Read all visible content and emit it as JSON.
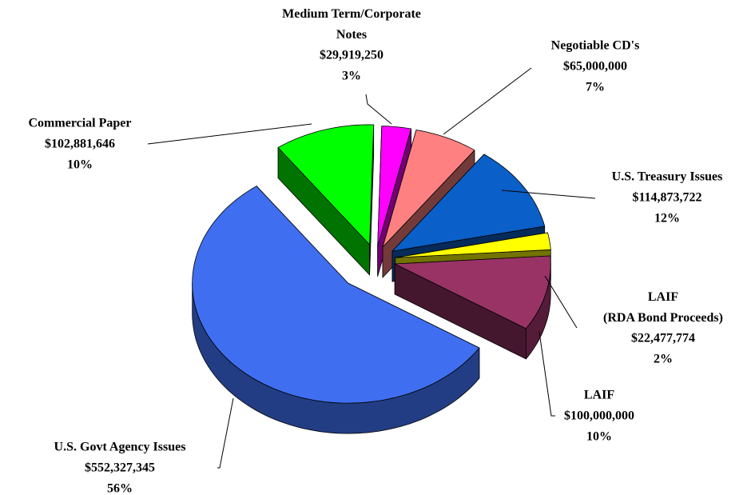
{
  "chart_data": {
    "type": "pie",
    "categories": [
      "Commercial Paper",
      "Medium Term/Corporate\nNotes",
      "Negotiable CD's",
      "U.S. Treasury Issues",
      "LAIF\n(RDA Bond Proceeds)",
      "LAIF",
      "U.S. Govt Agency Issues"
    ],
    "values": [
      102881646,
      29919250,
      65000000,
      114873722,
      22477774,
      100000000,
      552327345
    ],
    "value_labels": [
      "$102,881,646",
      "$29,919,250",
      "$65,000,000",
      "$114,873,722",
      "$22,477,774",
      "$100,000,000",
      "$552,327,345"
    ],
    "percent_labels": [
      "10%",
      "3%",
      "7%",
      "12%",
      "2%",
      "10%",
      "56%"
    ],
    "colors": [
      "#00ff00",
      "#ff00ff",
      "#ff8080",
      "#0a5fc8",
      "#ffff00",
      "#993366",
      "#3f6ff0"
    ]
  }
}
